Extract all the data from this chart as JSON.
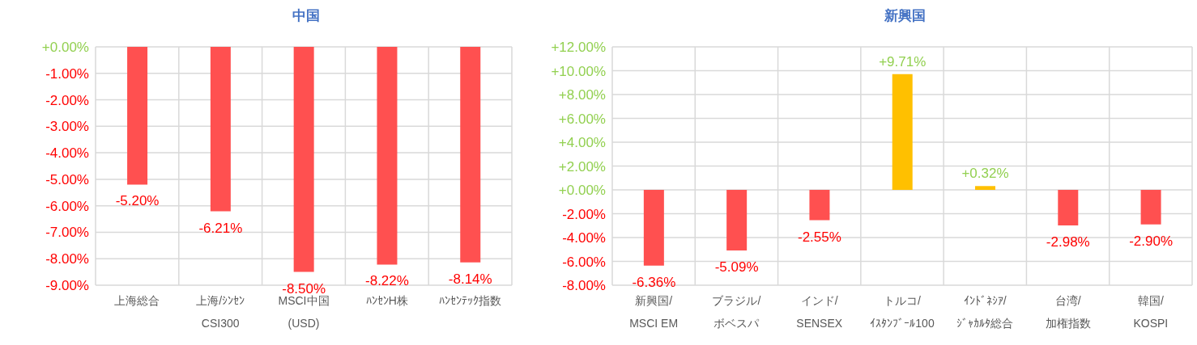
{
  "chart_data": [
    {
      "type": "bar",
      "title": "中国",
      "categories": [
        "上海総合",
        "上海/ｼﾝｾﾝ\nCSI300",
        "MSCI中国\n(USD)",
        "ﾊﾝｾﾝH株",
        "ﾊﾝｾﾝﾃｯｸ指数"
      ],
      "values": [
        -5.2,
        -6.21,
        -8.5,
        -8.22,
        -8.14
      ],
      "colors": [
        "#ff5050",
        "#ff5050",
        "#ff5050",
        "#ff5050",
        "#ff5050"
      ],
      "value_labels": [
        "-5.20%",
        "-6.21%",
        "-8.50%",
        "-8.22%",
        "-8.14%"
      ],
      "ylim": [
        -9,
        0
      ],
      "yticks": [
        {
          "value": 0,
          "label": "+0.00%"
        },
        {
          "value": -1,
          "label": "-1.00%"
        },
        {
          "value": -2,
          "label": "-2.00%"
        },
        {
          "value": -3,
          "label": "-3.00%"
        },
        {
          "value": -4,
          "label": "-4.00%"
        },
        {
          "value": -5,
          "label": "-5.00%"
        },
        {
          "value": -6,
          "label": "-6.00%"
        },
        {
          "value": -7,
          "label": "-7.00%"
        },
        {
          "value": -8,
          "label": "-8.00%"
        },
        {
          "value": -9,
          "label": "-9.00%"
        }
      ],
      "grid": true,
      "legend": false
    },
    {
      "type": "bar",
      "title": "新興国",
      "categories": [
        "新興国/\nMSCI EM",
        "ブラジル/\nボベスパ",
        "インド/\nSENSEX",
        "トルコ/\nｲｽﾀﾝﾌﾞｰﾙ100",
        "ｲﾝﾄﾞﾈｼｱ/\nｼﾞｬｶﾙﾀ総合",
        "台湾/\n加権指数",
        "韓国/\nKOSPI"
      ],
      "values": [
        -6.36,
        -5.09,
        -2.55,
        9.71,
        0.32,
        -2.98,
        -2.9
      ],
      "colors": [
        "#ff5050",
        "#ff5050",
        "#ff5050",
        "#ffc000",
        "#ffc000",
        "#ff5050",
        "#ff5050"
      ],
      "value_labels": [
        "-6.36%",
        "-5.09%",
        "-2.55%",
        "+9.71%",
        "+0.32%",
        "-2.98%",
        "-2.90%"
      ],
      "ylim": [
        -8,
        12
      ],
      "yticks": [
        {
          "value": 12,
          "label": "+12.00%"
        },
        {
          "value": 10,
          "label": "+10.00%"
        },
        {
          "value": 8,
          "label": "+8.00%"
        },
        {
          "value": 6,
          "label": "+6.00%"
        },
        {
          "value": 4,
          "label": "+4.00%"
        },
        {
          "value": 2,
          "label": "+2.00%"
        },
        {
          "value": 0,
          "label": "+0.00%"
        },
        {
          "value": -2,
          "label": "-2.00%"
        },
        {
          "value": -4,
          "label": "-4.00%"
        },
        {
          "value": -6,
          "label": "-6.00%"
        },
        {
          "value": -8,
          "label": "-8.00%"
        }
      ],
      "grid": true,
      "legend": false
    }
  ]
}
